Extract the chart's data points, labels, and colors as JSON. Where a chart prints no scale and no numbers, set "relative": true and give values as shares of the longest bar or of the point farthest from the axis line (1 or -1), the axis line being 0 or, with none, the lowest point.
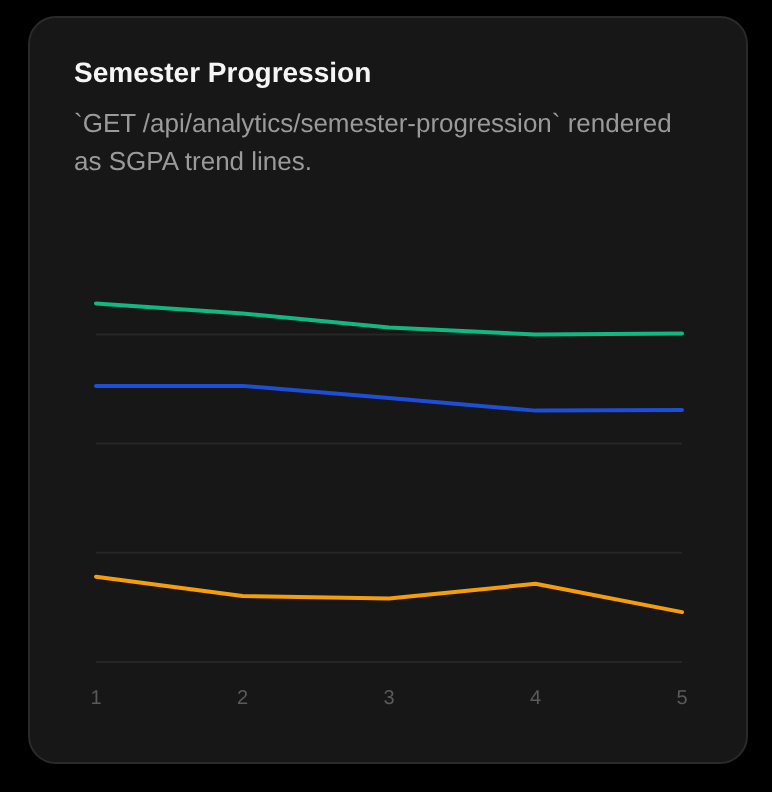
{
  "chart_data": {
    "type": "line",
    "title": "Semester Progression",
    "subtitle": "`GET /api/analytics/semester-progression` rendered as SGPA trend lines.",
    "relative": true,
    "grid": true,
    "x": [
      1,
      2,
      3,
      4,
      5
    ],
    "xlim": [
      1,
      5
    ],
    "xticks": [
      1,
      2,
      3,
      4,
      5
    ],
    "series": [
      {
        "color": "#10b981",
        "values": [
          1,
          0.972,
          0.933,
          0.913,
          0.916
        ]
      },
      {
        "color": "#1d4ed8",
        "values": [
          0.77,
          0.77,
          0.736,
          0.701,
          0.703
        ]
      },
      {
        "color": "#f59e0b",
        "values": [
          0.238,
          0.184,
          0.177,
          0.218,
          0.139
        ]
      }
    ]
  }
}
